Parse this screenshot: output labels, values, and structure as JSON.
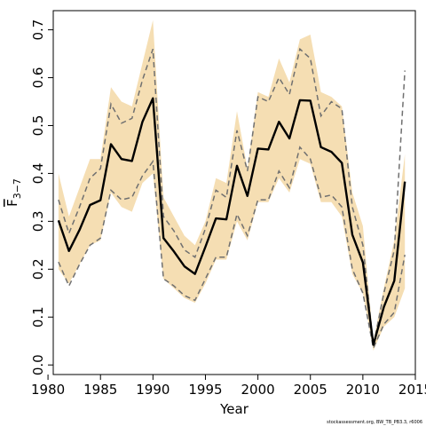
{
  "chart_data": {
    "type": "line",
    "title": "",
    "xlabel": "Year",
    "ylabel": "F",
    "ylabel_subscript": "3−7",
    "xlim": [
      1980.5,
      2015
    ],
    "ylim": [
      -0.02,
      0.74
    ],
    "xticks": [
      1980,
      1985,
      1990,
      1995,
      2000,
      2005,
      2010,
      2015
    ],
    "yticks": [
      0.0,
      0.1,
      0.2,
      0.3,
      0.4,
      0.5,
      0.6,
      0.7
    ],
    "x": [
      1981,
      1982,
      1983,
      1984,
      1985,
      1986,
      1987,
      1988,
      1989,
      1990,
      1991,
      1992,
      1993,
      1994,
      1995,
      1996,
      1997,
      1998,
      1999,
      2000,
      2001,
      2002,
      2003,
      2004,
      2005,
      2006,
      2007,
      2008,
      2009,
      2010,
      2011,
      2012,
      2013,
      2014
    ],
    "series": [
      {
        "role": "band_upper",
        "color": "#f5deb3",
        "values": [
          0.4,
          0.31,
          0.37,
          0.43,
          0.43,
          0.58,
          0.55,
          0.54,
          0.63,
          0.72,
          0.35,
          0.31,
          0.27,
          0.25,
          0.3,
          0.39,
          0.38,
          0.53,
          0.41,
          0.57,
          0.56,
          0.64,
          0.59,
          0.68,
          0.69,
          0.57,
          0.56,
          0.54,
          0.36,
          0.29,
          0.05,
          0.16,
          0.26,
          0.44
        ]
      },
      {
        "role": "band_lower",
        "color": "#f5deb3",
        "values": [
          0.2,
          0.17,
          0.21,
          0.25,
          0.26,
          0.36,
          0.33,
          0.32,
          0.38,
          0.4,
          0.18,
          0.16,
          0.14,
          0.13,
          0.17,
          0.22,
          0.22,
          0.3,
          0.26,
          0.34,
          0.34,
          0.39,
          0.36,
          0.43,
          0.42,
          0.34,
          0.34,
          0.31,
          0.19,
          0.15,
          0.03,
          0.08,
          0.1,
          0.16
        ]
      },
      {
        "role": "estimate",
        "color": "#000000",
        "values": [
          0.302,
          0.238,
          0.282,
          0.334,
          0.344,
          0.461,
          0.43,
          0.426,
          0.508,
          0.557,
          0.265,
          0.237,
          0.206,
          0.19,
          0.247,
          0.306,
          0.304,
          0.416,
          0.353,
          0.452,
          0.45,
          0.508,
          0.473,
          0.553,
          0.552,
          0.455,
          0.445,
          0.422,
          0.272,
          0.214,
          0.042,
          0.121,
          0.176,
          0.383
        ]
      },
      {
        "role": "dashed_upper",
        "color": "#707070",
        "values": [
          0.345,
          0.275,
          0.33,
          0.39,
          0.41,
          0.545,
          0.505,
          0.515,
          0.595,
          0.66,
          0.31,
          0.28,
          0.24,
          0.225,
          0.285,
          0.365,
          0.35,
          0.49,
          0.405,
          0.56,
          0.55,
          0.6,
          0.565,
          0.66,
          0.64,
          0.52,
          0.55,
          0.535,
          0.33,
          0.25,
          0.04,
          0.15,
          0.24,
          0.615
        ]
      },
      {
        "role": "dashed_lower",
        "color": "#707070",
        "values": [
          0.215,
          0.165,
          0.21,
          0.25,
          0.265,
          0.365,
          0.345,
          0.35,
          0.395,
          0.425,
          0.18,
          0.165,
          0.145,
          0.135,
          0.18,
          0.225,
          0.225,
          0.315,
          0.27,
          0.345,
          0.345,
          0.405,
          0.37,
          0.455,
          0.43,
          0.35,
          0.355,
          0.33,
          0.2,
          0.15,
          0.035,
          0.085,
          0.11,
          0.23
        ]
      }
    ],
    "grid": false,
    "legend": "none"
  },
  "credit": "stockassessment.org, BW_TB_PB3.3, r6006"
}
